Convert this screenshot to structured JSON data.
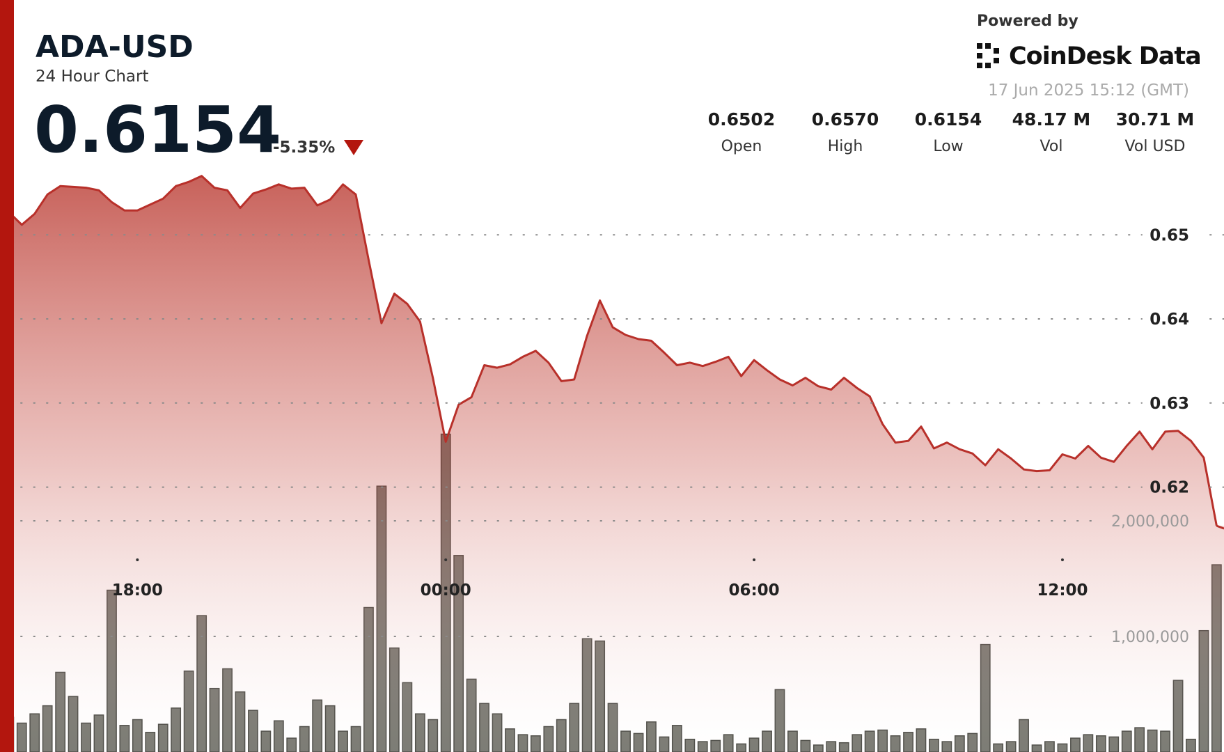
{
  "header": {
    "symbol": "ADA-USD",
    "subtitle": "24 Hour Chart",
    "price": 0.6154,
    "change": "-5.35%",
    "powered_by": "Powered by",
    "brand": "CoinDesk Data",
    "timestamp": "17 Jun 2025 15:12 (GMT)",
    "stats": [
      {
        "value": "0.6502",
        "label": "Open"
      },
      {
        "value": "0.6570",
        "label": "High"
      },
      {
        "value": "0.6154",
        "label": "Low"
      },
      {
        "value": "48.17 M",
        "label": "Vol"
      },
      {
        "value": "30.71 M",
        "label": "Vol USD"
      }
    ]
  },
  "chart_data": {
    "type": "line",
    "categories": [
      null,
      null,
      null,
      null,
      null,
      null,
      null,
      null,
      null,
      null,
      "18:00",
      null,
      null,
      null,
      null,
      null,
      null,
      null,
      null,
      null,
      null,
      null,
      null,
      null,
      null,
      null,
      null,
      null,
      null,
      null,
      null,
      null,
      null,
      null,
      "00:00",
      null,
      null,
      null,
      null,
      null,
      null,
      null,
      null,
      null,
      null,
      null,
      null,
      null,
      null,
      null,
      null,
      null,
      null,
      null,
      null,
      null,
      null,
      null,
      "06:00",
      null,
      null,
      null,
      null,
      null,
      null,
      null,
      null,
      null,
      null,
      null,
      null,
      null,
      null,
      null,
      null,
      null,
      null,
      null,
      null,
      null,
      null,
      null,
      "12:00",
      null,
      null,
      null,
      null,
      null,
      null,
      null,
      null,
      null,
      null,
      null,
      null
    ],
    "series": [
      {
        "color": "#b8302a",
        "values": [
          0.6527,
          0.6512,
          0.6525,
          0.6548,
          0.6558,
          0.6557,
          0.6556,
          0.6553,
          0.6539,
          0.6529,
          0.6529,
          0.6536,
          0.6543,
          0.6558,
          0.6563,
          0.657,
          0.6556,
          0.6553,
          0.6532,
          0.6549,
          0.6554,
          0.656,
          0.6555,
          0.6556,
          0.6535,
          0.6542,
          0.656,
          0.6548,
          0.647,
          0.6395,
          0.643,
          0.6418,
          0.6397,
          0.633,
          0.6254,
          0.6298,
          0.6307,
          0.6345,
          0.6342,
          0.6346,
          0.6355,
          0.6362,
          0.6348,
          0.6326,
          0.6328,
          0.638,
          0.6422,
          0.639,
          0.6381,
          0.6376,
          0.6374,
          0.636,
          0.6345,
          0.6348,
          0.6344,
          0.6349,
          0.6355,
          0.6332,
          0.6351,
          0.6339,
          0.6328,
          0.6321,
          0.633,
          0.632,
          0.6316,
          0.633,
          0.6318,
          0.6308,
          0.6275,
          0.6253,
          0.6255,
          0.6272,
          0.6246,
          0.6253,
          0.6245,
          0.624,
          0.6226,
          0.6245,
          0.6234,
          0.6221,
          0.6219,
          0.622,
          0.6239,
          0.6234,
          0.6249,
          0.6235,
          0.623,
          0.6249,
          0.6266,
          0.6245,
          0.6266,
          0.6267,
          0.6255,
          0.6235,
          0.6154
        ]
      },
      {
        "type": "bar",
        "axis": "y2",
        "color": "#6e6e66",
        "values": [
          300000,
          250000,
          330000,
          400000,
          690000,
          480000,
          250000,
          320000,
          1400000,
          230000,
          280000,
          170000,
          240000,
          380000,
          700000,
          1180000,
          550000,
          720000,
          520000,
          360000,
          180000,
          270000,
          120000,
          220000,
          450000,
          400000,
          180000,
          220000,
          1250000,
          2300000,
          900000,
          600000,
          330000,
          280000,
          2750000,
          1700000,
          630000,
          420000,
          330000,
          200000,
          150000,
          140000,
          220000,
          280000,
          420000,
          980000,
          960000,
          420000,
          180000,
          160000,
          260000,
          130000,
          230000,
          110000,
          90000,
          100000,
          150000,
          70000,
          120000,
          180000,
          540000,
          180000,
          100000,
          60000,
          90000,
          80000,
          150000,
          180000,
          190000,
          140000,
          170000,
          200000,
          110000,
          90000,
          140000,
          160000,
          930000,
          70000,
          90000,
          280000,
          60000,
          90000,
          70000,
          120000,
          150000,
          140000,
          130000,
          180000,
          210000,
          190000,
          180000,
          620000,
          110000,
          1050000,
          1620000
        ]
      }
    ],
    "ylim": [
      0.5885,
      0.6575
    ],
    "yticks": [
      0.62,
      0.63,
      0.64,
      0.65
    ],
    "y2lim": [
      0,
      3000000
    ],
    "y2ticks": [
      {
        "value": 1000000,
        "label": "1,000,000"
      },
      {
        "value": 2000000,
        "label": "2,000,000"
      }
    ],
    "grid": true
  }
}
